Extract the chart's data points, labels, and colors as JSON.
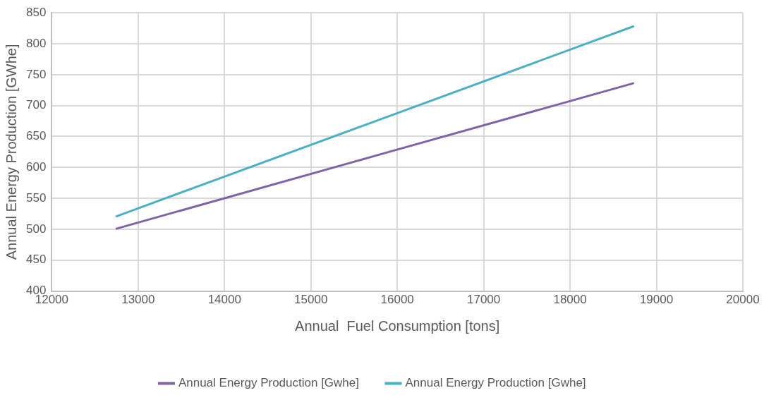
{
  "chart_data": {
    "type": "line",
    "xlabel": "Annual  Fuel Consumption [tons]",
    "ylabel": "Annual Energy Production [GWhe]",
    "xlim": [
      12000,
      20000
    ],
    "xticks": [
      12000,
      13000,
      14000,
      15000,
      16000,
      17000,
      18000,
      19000,
      20000
    ],
    "ylim": [
      400,
      850
    ],
    "yticks": [
      400,
      450,
      500,
      550,
      600,
      650,
      700,
      750,
      800,
      850
    ],
    "grid": true,
    "legend": "bottom",
    "marker": "none",
    "line_style": "solid",
    "series": [
      {
        "name": "Annual Energy Production [Gwhe]",
        "color": "#7f63a8",
        "x": [
          12750,
          15750,
          18730
        ],
        "values": [
          501,
          619,
          736
        ]
      },
      {
        "name": "Annual Energy Production [Gwhe]",
        "color": "#4bafc6",
        "x": [
          12750,
          15750,
          18730
        ],
        "values": [
          521,
          675,
          828
        ]
      }
    ]
  }
}
